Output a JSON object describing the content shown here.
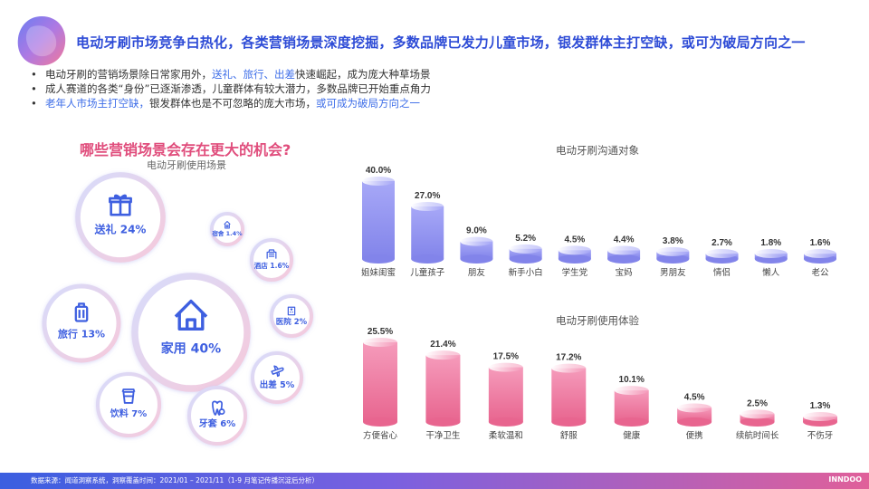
{
  "title": "电动牙刷市场竞争白热化，各类营销场景深度挖掘，多数品牌已发力儿童市场，银发群体主打空缺，或可为破局方向之一",
  "bullets": [
    {
      "a": "电动牙刷的营销场景除日常家用外，",
      "b": "送礼、旅行、出差",
      "c": "快速崛起，成为庞大种草场景"
    },
    {
      "a": "成人赛道的各类“身份”已逐渐渗透，儿童群体有较大潜力，多数品牌已开始重点角力"
    },
    {
      "a": "老年人市场主打空缺，",
      "b": "银发群体也是不可忽略的庞大市场，",
      "c": "或可成为破局方向之一"
    }
  ],
  "scene": {
    "question": "哪些营销场景会存在更大的机会?",
    "subtitle": "电动牙刷使用场景",
    "bubbles": [
      {
        "label": "家用",
        "value": "40%",
        "icon": "house-icon"
      },
      {
        "label": "送礼",
        "value": "24%",
        "icon": "gift-icon"
      },
      {
        "label": "旅行",
        "value": "13%",
        "icon": "luggage-icon"
      },
      {
        "label": "饮料",
        "value": "7%",
        "icon": "cup-icon"
      },
      {
        "label": "牙套",
        "value": "6%",
        "icon": "tooth-icon"
      },
      {
        "label": "出差",
        "value": "5%",
        "icon": "airplane-icon"
      },
      {
        "label": "医院",
        "value": "2%",
        "icon": "hospital-icon"
      },
      {
        "label": "酒店",
        "value": "1.6%",
        "icon": "hotel-icon"
      },
      {
        "label": "宿舍",
        "value": "1.4%",
        "icon": "dorm-icon"
      }
    ]
  },
  "chart_data": [
    {
      "type": "bar",
      "title": "电动牙刷沟通对象",
      "categories": [
        "姐妹闺蜜",
        "儿童孩子",
        "朋友",
        "新手小白",
        "学生党",
        "宝妈",
        "男朋友",
        "情侣",
        "懒人",
        "老公"
      ],
      "values": [
        40.0,
        27.0,
        9.0,
        5.2,
        4.5,
        4.4,
        3.8,
        2.7,
        1.8,
        1.6
      ],
      "labels": [
        "40.0%",
        "27.0%",
        "9.0%",
        "5.2%",
        "4.5%",
        "4.4%",
        "3.8%",
        "2.7%",
        "1.8%",
        "1.6%"
      ],
      "color": "#8d8ef0"
    },
    {
      "type": "bar",
      "title": "电动牙刷使用体验",
      "categories": [
        "方便省心",
        "干净卫生",
        "柔软温和",
        "舒服",
        "健康",
        "便携",
        "续航时间长",
        "不伤牙"
      ],
      "values": [
        25.5,
        21.4,
        17.5,
        17.2,
        10.1,
        4.5,
        2.5,
        1.3
      ],
      "labels": [
        "25.5%",
        "21.4%",
        "17.5%",
        "17.2%",
        "10.1%",
        "4.5%",
        "2.5%",
        "1.3%"
      ],
      "color": "#ef6f9a"
    }
  ],
  "footer": {
    "source": "数据来源：闻道洞察系统，洞察覆盖时间：2021/01 – 2021/11（1-9 月笔记传播沉淀后分析）",
    "brand": "INNDOO"
  }
}
